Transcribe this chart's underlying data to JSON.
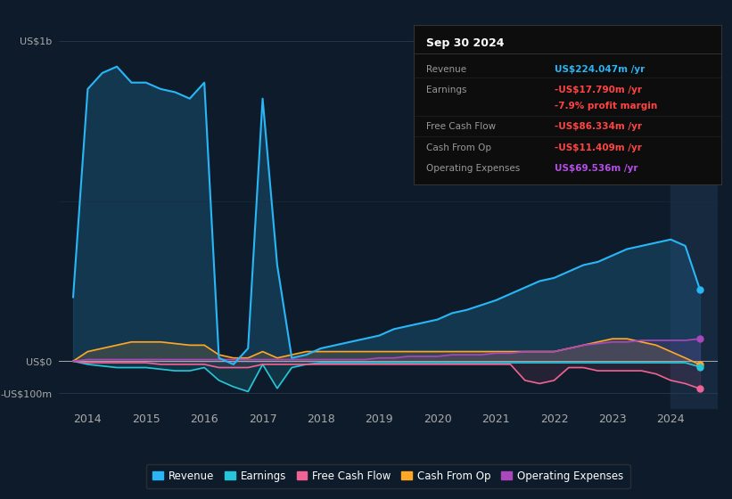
{
  "bg_color": "#0d1b2a",
  "plot_bg_color": "#0d1b2a",
  "title_box": {
    "date": "Sep 30 2024",
    "rows": [
      {
        "label": "Revenue",
        "value": "US$224.047m /yr",
        "value_color": "#29b6f6"
      },
      {
        "label": "Earnings",
        "value": "-US$17.790m /yr",
        "value_color": "#ff4444"
      },
      {
        "label": "",
        "value": "-7.9% profit margin",
        "value_color": "#ff4444"
      },
      {
        "label": "Free Cash Flow",
        "value": "-US$86.334m /yr",
        "value_color": "#ff4444"
      },
      {
        "label": "Cash From Op",
        "value": "-US$11.409m /yr",
        "value_color": "#ff4444"
      },
      {
        "label": "Operating Expenses",
        "value": "US$69.536m /yr",
        "value_color": "#b44fe8"
      }
    ]
  },
  "legend": [
    {
      "label": "Revenue",
      "color": "#29b6f6"
    },
    {
      "label": "Earnings",
      "color": "#26c6da"
    },
    {
      "label": "Free Cash Flow",
      "color": "#f06292"
    },
    {
      "label": "Cash From Op",
      "color": "#ffa726"
    },
    {
      "label": "Operating Expenses",
      "color": "#ab47bc"
    }
  ],
  "series": {
    "years": [
      2013.75,
      2014.0,
      2014.25,
      2014.5,
      2014.75,
      2015.0,
      2015.25,
      2015.5,
      2015.75,
      2016.0,
      2016.25,
      2016.5,
      2016.75,
      2017.0,
      2017.25,
      2017.5,
      2017.75,
      2018.0,
      2018.25,
      2018.5,
      2018.75,
      2019.0,
      2019.25,
      2019.5,
      2019.75,
      2020.0,
      2020.25,
      2020.5,
      2020.75,
      2021.0,
      2021.25,
      2021.5,
      2021.75,
      2022.0,
      2022.25,
      2022.5,
      2022.75,
      2023.0,
      2023.25,
      2023.5,
      2023.75,
      2024.0,
      2024.25,
      2024.5
    ],
    "revenue": [
      200,
      850,
      900,
      920,
      870,
      870,
      850,
      840,
      820,
      870,
      10,
      -10,
      40,
      820,
      300,
      10,
      20,
      40,
      50,
      60,
      70,
      80,
      100,
      110,
      120,
      130,
      150,
      160,
      175,
      190,
      210,
      230,
      250,
      260,
      280,
      300,
      310,
      330,
      350,
      360,
      370,
      380,
      360,
      224
    ],
    "earnings": [
      0,
      -10,
      -15,
      -20,
      -20,
      -20,
      -25,
      -30,
      -30,
      -20,
      -60,
      -80,
      -95,
      -10,
      -85,
      -20,
      -10,
      -5,
      -5,
      -5,
      -5,
      -5,
      -5,
      -5,
      -5,
      -5,
      -5,
      -5,
      -5,
      -5,
      -5,
      -5,
      -5,
      -5,
      -5,
      -5,
      -5,
      -5,
      -5,
      -5,
      -5,
      -5,
      -5,
      -18
    ],
    "free_cash_flow": [
      0,
      -5,
      -5,
      -5,
      -5,
      -5,
      -10,
      -10,
      -10,
      -10,
      -20,
      -20,
      -20,
      -10,
      -10,
      -10,
      -10,
      -10,
      -10,
      -10,
      -10,
      -10,
      -10,
      -10,
      -10,
      -10,
      -10,
      -10,
      -10,
      -10,
      -10,
      -60,
      -70,
      -60,
      -20,
      -20,
      -30,
      -30,
      -30,
      -30,
      -40,
      -60,
      -70,
      -86
    ],
    "cash_from_op": [
      0,
      30,
      40,
      50,
      60,
      60,
      60,
      55,
      50,
      50,
      20,
      10,
      10,
      30,
      10,
      20,
      30,
      30,
      30,
      30,
      30,
      30,
      30,
      30,
      30,
      30,
      30,
      30,
      30,
      30,
      30,
      30,
      30,
      30,
      40,
      50,
      60,
      70,
      70,
      60,
      50,
      30,
      10,
      -11
    ],
    "operating_expenses": [
      0,
      5,
      5,
      5,
      5,
      5,
      5,
      5,
      5,
      5,
      5,
      5,
      5,
      5,
      5,
      5,
      5,
      5,
      5,
      5,
      5,
      10,
      10,
      15,
      15,
      15,
      20,
      20,
      20,
      25,
      25,
      30,
      30,
      30,
      40,
      50,
      55,
      60,
      60,
      65,
      65,
      65,
      65,
      70
    ]
  },
  "xlim": [
    2013.5,
    2024.8
  ],
  "ylim": [
    -150,
    1050
  ],
  "xticks": [
    2014,
    2015,
    2016,
    2017,
    2018,
    2019,
    2020,
    2021,
    2022,
    2023,
    2024
  ],
  "yticks_vals": [
    1000,
    0,
    -100
  ],
  "yticks_labels": [
    "US$1b",
    "US$0",
    "-US$100m"
  ],
  "shade_right_start": 2024.0
}
